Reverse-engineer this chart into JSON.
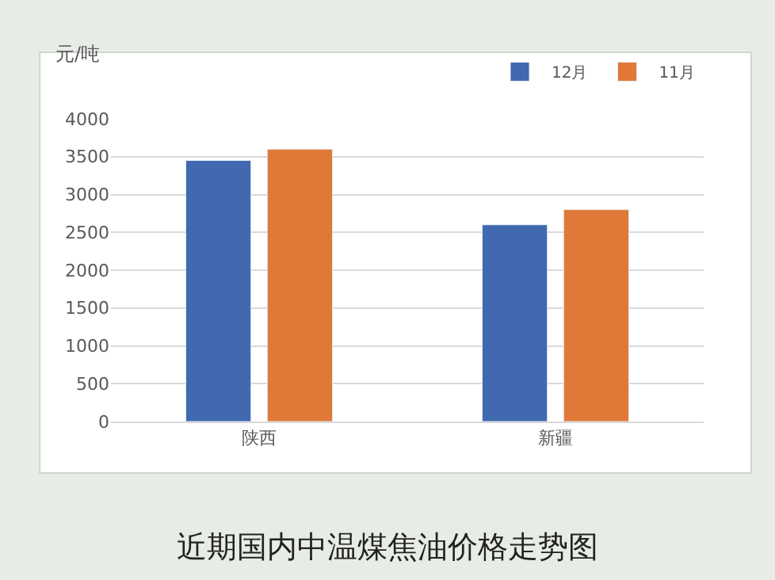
{
  "chart_data": {
    "type": "bar",
    "title": "近期国内中温煤焦油价格走势图",
    "ylabel": "元/吨",
    "categories": [
      "陕西",
      "新疆"
    ],
    "series": [
      {
        "name": "12月",
        "color": "#4169b0",
        "values": [
          3450,
          2600
        ]
      },
      {
        "name": "11月",
        "color": "#e07838",
        "values": [
          3600,
          2800
        ]
      }
    ],
    "ylim": [
      0,
      4000
    ],
    "yticks": [
      0,
      500,
      1000,
      1500,
      2000,
      2500,
      3000,
      3500,
      4000
    ],
    "grid": "y",
    "legend": "top right"
  }
}
